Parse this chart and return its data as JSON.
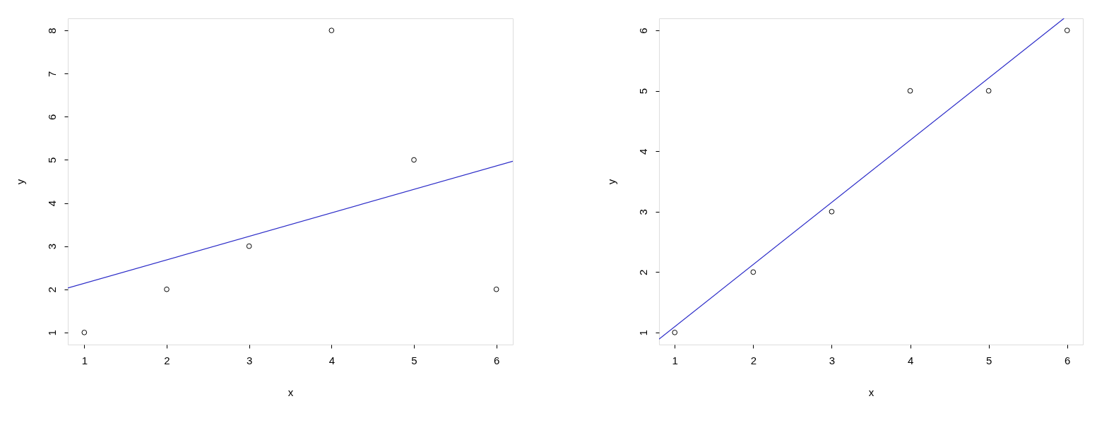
{
  "chart_data": [
    {
      "type": "scatter",
      "xlabel": "x",
      "ylabel": "y",
      "xlim": [
        0.8,
        6.2
      ],
      "ylim": [
        0.72,
        8.28
      ],
      "xticks": [
        1,
        2,
        3,
        4,
        5,
        6
      ],
      "yticks": [
        1,
        2,
        3,
        4,
        5,
        6,
        7,
        8
      ],
      "grid": false,
      "series": [
        {
          "color": "#000000",
          "marker": "circle",
          "x": [
            1,
            2,
            3,
            4,
            5,
            6
          ],
          "values": [
            1,
            2,
            3,
            8,
            5,
            2
          ]
        },
        {
          "type": "line",
          "marker": "none",
          "color": "#2b2bc8",
          "x": [
            0.8,
            6.2
          ],
          "values": [
            2.03,
            4.97
          ]
        }
      ]
    },
    {
      "type": "scatter",
      "xlabel": "x",
      "ylabel": "y",
      "xlim": [
        0.8,
        6.2
      ],
      "ylim": [
        0.8,
        6.2
      ],
      "xticks": [
        1,
        2,
        3,
        4,
        5,
        6
      ],
      "yticks": [
        1,
        2,
        3,
        4,
        5,
        6
      ],
      "grid": false,
      "series": [
        {
          "color": "#000000",
          "marker": "circle",
          "x": [
            1,
            2,
            3,
            4,
            5,
            6
          ],
          "values": [
            1,
            2,
            3,
            5,
            5,
            6
          ]
        },
        {
          "type": "line",
          "marker": "none",
          "color": "#2b2bc8",
          "x": [
            0.8,
            5.96
          ],
          "values": [
            0.89,
            6.2
          ]
        }
      ]
    }
  ]
}
